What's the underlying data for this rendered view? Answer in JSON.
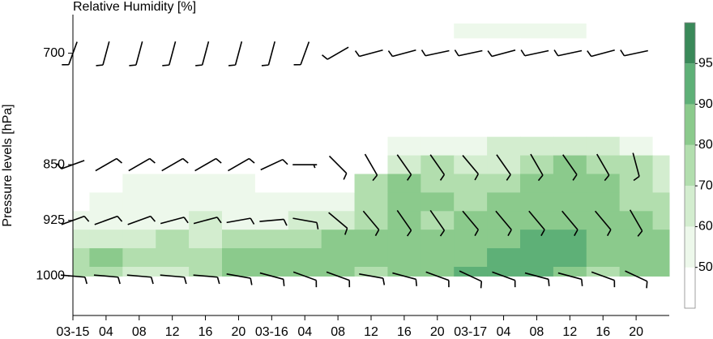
{
  "chart_data": {
    "type": "contour",
    "title": "Relative Humidity [%]",
    "ylabel": "Pressure levels [hPa]",
    "xlim": [
      0,
      72
    ],
    "ylim": [
      1053,
      648
    ],
    "xticks": [
      {
        "value": 0,
        "label": "03-15"
      },
      {
        "value": 4,
        "label": "04"
      },
      {
        "value": 8,
        "label": "08"
      },
      {
        "value": 12,
        "label": "12"
      },
      {
        "value": 16,
        "label": "16"
      },
      {
        "value": 20,
        "label": "20"
      },
      {
        "value": 24,
        "label": "03-16"
      },
      {
        "value": 28,
        "label": "04"
      },
      {
        "value": 32,
        "label": "08"
      },
      {
        "value": 36,
        "label": "12"
      },
      {
        "value": 40,
        "label": "16"
      },
      {
        "value": 44,
        "label": "20"
      },
      {
        "value": 48,
        "label": "03-17"
      },
      {
        "value": 52,
        "label": "04"
      },
      {
        "value": 56,
        "label": "08"
      },
      {
        "value": 60,
        "label": "12"
      },
      {
        "value": 64,
        "label": "16"
      },
      {
        "value": 68,
        "label": "20"
      }
    ],
    "yticks": [
      700,
      850,
      925,
      1000
    ],
    "x": [
      0,
      4,
      8,
      12,
      16,
      20,
      24,
      28,
      32,
      36,
      40,
      44,
      48,
      52,
      56,
      60,
      64,
      68,
      72
    ],
    "y": [
      660,
      700,
      750,
      800,
      825,
      850,
      875,
      900,
      925,
      950,
      975,
      1000
    ],
    "z": [
      [
        40,
        40,
        40,
        40,
        40,
        40,
        40,
        40,
        40,
        40,
        40,
        40,
        55,
        55,
        55,
        55,
        40,
        40,
        40
      ],
      [
        40,
        40,
        40,
        40,
        40,
        40,
        40,
        40,
        40,
        40,
        40,
        40,
        40,
        40,
        40,
        40,
        40,
        40,
        40
      ],
      [
        40,
        40,
        40,
        40,
        40,
        40,
        40,
        40,
        40,
        40,
        40,
        40,
        40,
        40,
        40,
        40,
        40,
        40,
        40
      ],
      [
        40,
        40,
        40,
        40,
        40,
        40,
        40,
        40,
        40,
        40,
        40,
        45,
        45,
        45,
        45,
        45,
        45,
        40,
        40
      ],
      [
        40,
        40,
        40,
        40,
        40,
        40,
        40,
        40,
        40,
        40,
        50,
        58,
        55,
        60,
        65,
        65,
        60,
        55,
        45
      ],
      [
        40,
        40,
        40,
        40,
        40,
        40,
        40,
        40,
        40,
        40,
        65,
        72,
        68,
        62,
        75,
        82,
        78,
        70,
        62
      ],
      [
        45,
        45,
        55,
        55,
        55,
        50,
        45,
        45,
        45,
        70,
        85,
        78,
        70,
        72,
        82,
        85,
        80,
        72,
        65
      ],
      [
        45,
        50,
        52,
        55,
        58,
        55,
        50,
        50,
        52,
        75,
        82,
        80,
        76,
        80,
        85,
        85,
        82,
        78,
        72
      ],
      [
        50,
        52,
        55,
        58,
        60,
        58,
        58,
        60,
        62,
        78,
        80,
        78,
        82,
        85,
        88,
        84,
        80,
        80,
        78
      ],
      [
        62,
        65,
        68,
        70,
        68,
        72,
        75,
        78,
        80,
        80,
        80,
        82,
        85,
        88,
        91,
        92,
        85,
        80,
        82
      ],
      [
        72,
        80,
        70,
        70,
        75,
        82,
        85,
        88,
        82,
        80,
        82,
        85,
        88,
        91,
        92,
        93,
        80,
        82,
        88
      ],
      [
        70,
        75,
        68,
        68,
        72,
        80,
        85,
        82,
        80,
        78,
        80,
        82,
        90,
        92,
        92,
        85,
        78,
        80,
        88
      ]
    ],
    "levels": [
      50,
      60,
      70,
      80,
      90,
      95
    ],
    "colors": [
      "#ffffff",
      "#edf8eb",
      "#d3edcf",
      "#b2deae",
      "#8bca8c",
      "#5eb077",
      "#3a8959"
    ],
    "barbs": {
      "x": [
        0,
        4,
        8,
        12,
        16,
        20,
        24,
        28,
        32,
        36,
        40,
        44,
        48,
        52,
        56,
        60,
        64,
        68
      ],
      "levels": [
        700,
        850,
        925,
        1000
      ],
      "direction": [
        [
          200,
          195,
          195,
          195,
          195,
          195,
          195,
          200,
          240,
          255,
          255,
          258,
          258,
          255,
          258,
          258,
          255,
          258
        ],
        [
          250,
          60,
          60,
          60,
          60,
          60,
          65,
          90,
          135,
          150,
          145,
          145,
          140,
          145,
          150,
          145,
          150,
          165
        ],
        [
          70,
          70,
          70,
          75,
          75,
          80,
          85,
          100,
          130,
          140,
          145,
          145,
          140,
          140,
          140,
          140,
          140,
          150
        ],
        [
          95,
          95,
          95,
          95,
          95,
          100,
          105,
          110,
          110,
          100,
          105,
          110,
          115,
          110,
          105,
          105,
          110,
          115
        ]
      ],
      "speed": [
        [
          10,
          10,
          10,
          10,
          10,
          10,
          10,
          10,
          10,
          10,
          10,
          10,
          10,
          10,
          10,
          10,
          10,
          10
        ],
        [
          10,
          10,
          10,
          10,
          10,
          10,
          10,
          5,
          10,
          10,
          10,
          10,
          10,
          10,
          10,
          10,
          10,
          10
        ],
        [
          10,
          10,
          10,
          10,
          10,
          10,
          10,
          10,
          10,
          10,
          10,
          10,
          10,
          10,
          10,
          10,
          10,
          10
        ],
        [
          10,
          10,
          10,
          10,
          10,
          10,
          10,
          10,
          10,
          10,
          10,
          10,
          10,
          10,
          10,
          10,
          10,
          10
        ]
      ]
    }
  }
}
